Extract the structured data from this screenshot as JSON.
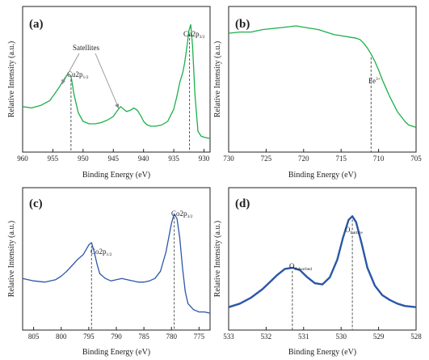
{
  "chart_data": [
    {
      "panel": "(a)",
      "type": "line",
      "color": "#1db049",
      "xlabel": "Binding Energy (eV)",
      "ylabel": "Relative Intensity (a.u.)",
      "xlim": [
        960,
        929
      ],
      "x_reversed": true,
      "xticks": [
        "960",
        "955",
        "950",
        "945",
        "940",
        "935",
        "930"
      ],
      "ylim": [
        0,
        1
      ],
      "annotations": [
        {
          "text": "Cu2p",
          "sub": "1/2",
          "x": 952.0
        },
        {
          "text": "Cu2p",
          "sub": "3/2",
          "x": 932.4
        },
        {
          "text": "Satellites"
        }
      ],
      "dashed_lines_x": [
        952.0,
        932.4
      ],
      "series": [
        {
          "x": [
            960,
            958.5,
            957,
            955.5,
            954.5,
            953.8,
            953.2,
            952.5,
            952.0,
            951.5,
            950.8,
            950,
            949,
            948,
            947,
            946,
            945,
            944.3,
            943.8,
            943.3,
            942.8,
            942.2,
            941.6,
            941,
            940.4,
            940,
            939.4,
            938.8,
            938,
            937,
            936,
            935,
            934.5,
            934,
            933.5,
            933.2,
            932.8,
            932.5,
            932.2,
            931.9,
            931.5,
            931,
            930.5,
            930,
            929
          ],
          "y": [
            0.3,
            0.29,
            0.31,
            0.35,
            0.42,
            0.47,
            0.52,
            0.57,
            0.55,
            0.4,
            0.25,
            0.18,
            0.16,
            0.16,
            0.17,
            0.19,
            0.22,
            0.27,
            0.3,
            0.28,
            0.26,
            0.27,
            0.29,
            0.27,
            0.22,
            0.18,
            0.15,
            0.14,
            0.14,
            0.15,
            0.18,
            0.28,
            0.38,
            0.5,
            0.58,
            0.66,
            0.8,
            0.92,
            0.97,
            0.8,
            0.4,
            0.1,
            0.06,
            0.05,
            0.04
          ]
        }
      ]
    },
    {
      "panel": "(b)",
      "type": "line",
      "color": "#1db049",
      "xlabel": "Binding Energy (eV)",
      "ylabel": "Relative Intensity (a.u.)",
      "xlim": [
        730,
        705
      ],
      "x_reversed": true,
      "xticks": [
        "730",
        "725",
        "720",
        "715",
        "710",
        "705"
      ],
      "ylim": [
        0,
        1
      ],
      "annotations": [
        {
          "text": "Fe",
          "sup": "3+",
          "x": 711
        }
      ],
      "dashed_lines_x": [
        711
      ],
      "series": [
        {
          "x": [
            730,
            728.5,
            727,
            725.5,
            724,
            722.5,
            721,
            720,
            719,
            718,
            717,
            716,
            715,
            714,
            713,
            712.5,
            712,
            711.5,
            711,
            710.5,
            710,
            709.5,
            709,
            708.5,
            708,
            707.5,
            707,
            706.5,
            706,
            705
          ],
          "y": [
            0.9,
            0.91,
            0.91,
            0.93,
            0.94,
            0.95,
            0.96,
            0.95,
            0.94,
            0.93,
            0.91,
            0.89,
            0.88,
            0.87,
            0.86,
            0.85,
            0.82,
            0.78,
            0.73,
            0.67,
            0.6,
            0.52,
            0.45,
            0.38,
            0.32,
            0.26,
            0.22,
            0.18,
            0.15,
            0.13
          ]
        }
      ]
    },
    {
      "panel": "(c)",
      "type": "line",
      "color": "#2a57a8",
      "xlabel": "Binding Energy (eV)",
      "ylabel": "Relative Intensity (a.u.)",
      "xlim": [
        807,
        773
      ],
      "x_reversed": true,
      "xticks": [
        "805",
        "800",
        "795",
        "790",
        "785",
        "780",
        "775"
      ],
      "ylim": [
        0,
        1
      ],
      "annotations": [
        {
          "text": "Co2p",
          "sub": "1/2",
          "x": 794.5
        },
        {
          "text": "Co2p",
          "sub": "3/2",
          "x": 779.5
        }
      ],
      "dashed_lines_x": [
        794.5,
        779.5
      ],
      "series": [
        {
          "x": [
            807,
            805,
            803,
            801,
            800,
            799,
            798,
            797,
            796,
            795.5,
            795,
            794.5,
            794,
            793.5,
            793,
            792,
            791,
            790,
            789,
            788,
            787,
            786,
            785,
            784,
            783,
            782,
            781.5,
            781,
            780.5,
            780,
            779.5,
            779,
            778.5,
            778,
            777.5,
            777,
            776,
            775,
            774,
            773
          ],
          "y": [
            0.36,
            0.34,
            0.33,
            0.35,
            0.38,
            0.42,
            0.47,
            0.52,
            0.56,
            0.6,
            0.64,
            0.66,
            0.58,
            0.48,
            0.4,
            0.36,
            0.34,
            0.35,
            0.36,
            0.35,
            0.34,
            0.33,
            0.33,
            0.34,
            0.36,
            0.42,
            0.5,
            0.58,
            0.7,
            0.82,
            0.9,
            0.86,
            0.7,
            0.45,
            0.25,
            0.15,
            0.1,
            0.08,
            0.08,
            0.07
          ]
        }
      ]
    },
    {
      "panel": "(d)",
      "type": "line",
      "color": "#2a57a8",
      "xlabel": "Binding Energy (eV)",
      "ylabel": "Relative Intensity (a.u.)",
      "xlim": [
        533,
        528
      ],
      "x_reversed": true,
      "xticks": [
        "533",
        "532",
        "531",
        "530",
        "529",
        "528"
      ],
      "ylim": [
        0,
        1
      ],
      "annotations": [
        {
          "text": "O",
          "sub": "Adsorbed",
          "x": 531.3
        },
        {
          "text": "O",
          "sub": "Lattice",
          "x": 529.7
        }
      ],
      "dashed_lines_x": [
        531.3,
        529.7
      ],
      "series": [
        {
          "x": [
            533,
            532.7,
            532.4,
            532.1,
            531.9,
            531.7,
            531.5,
            531.3,
            531.1,
            530.9,
            530.7,
            530.5,
            530.3,
            530.1,
            529.95,
            529.8,
            529.7,
            529.6,
            529.45,
            529.3,
            529.1,
            528.9,
            528.7,
            528.5,
            528.3,
            528
          ],
          "y": [
            0.12,
            0.15,
            0.2,
            0.27,
            0.33,
            0.39,
            0.44,
            0.45,
            0.43,
            0.37,
            0.32,
            0.31,
            0.37,
            0.52,
            0.7,
            0.85,
            0.88,
            0.83,
            0.65,
            0.45,
            0.3,
            0.22,
            0.18,
            0.15,
            0.13,
            0.12
          ]
        }
      ]
    }
  ]
}
